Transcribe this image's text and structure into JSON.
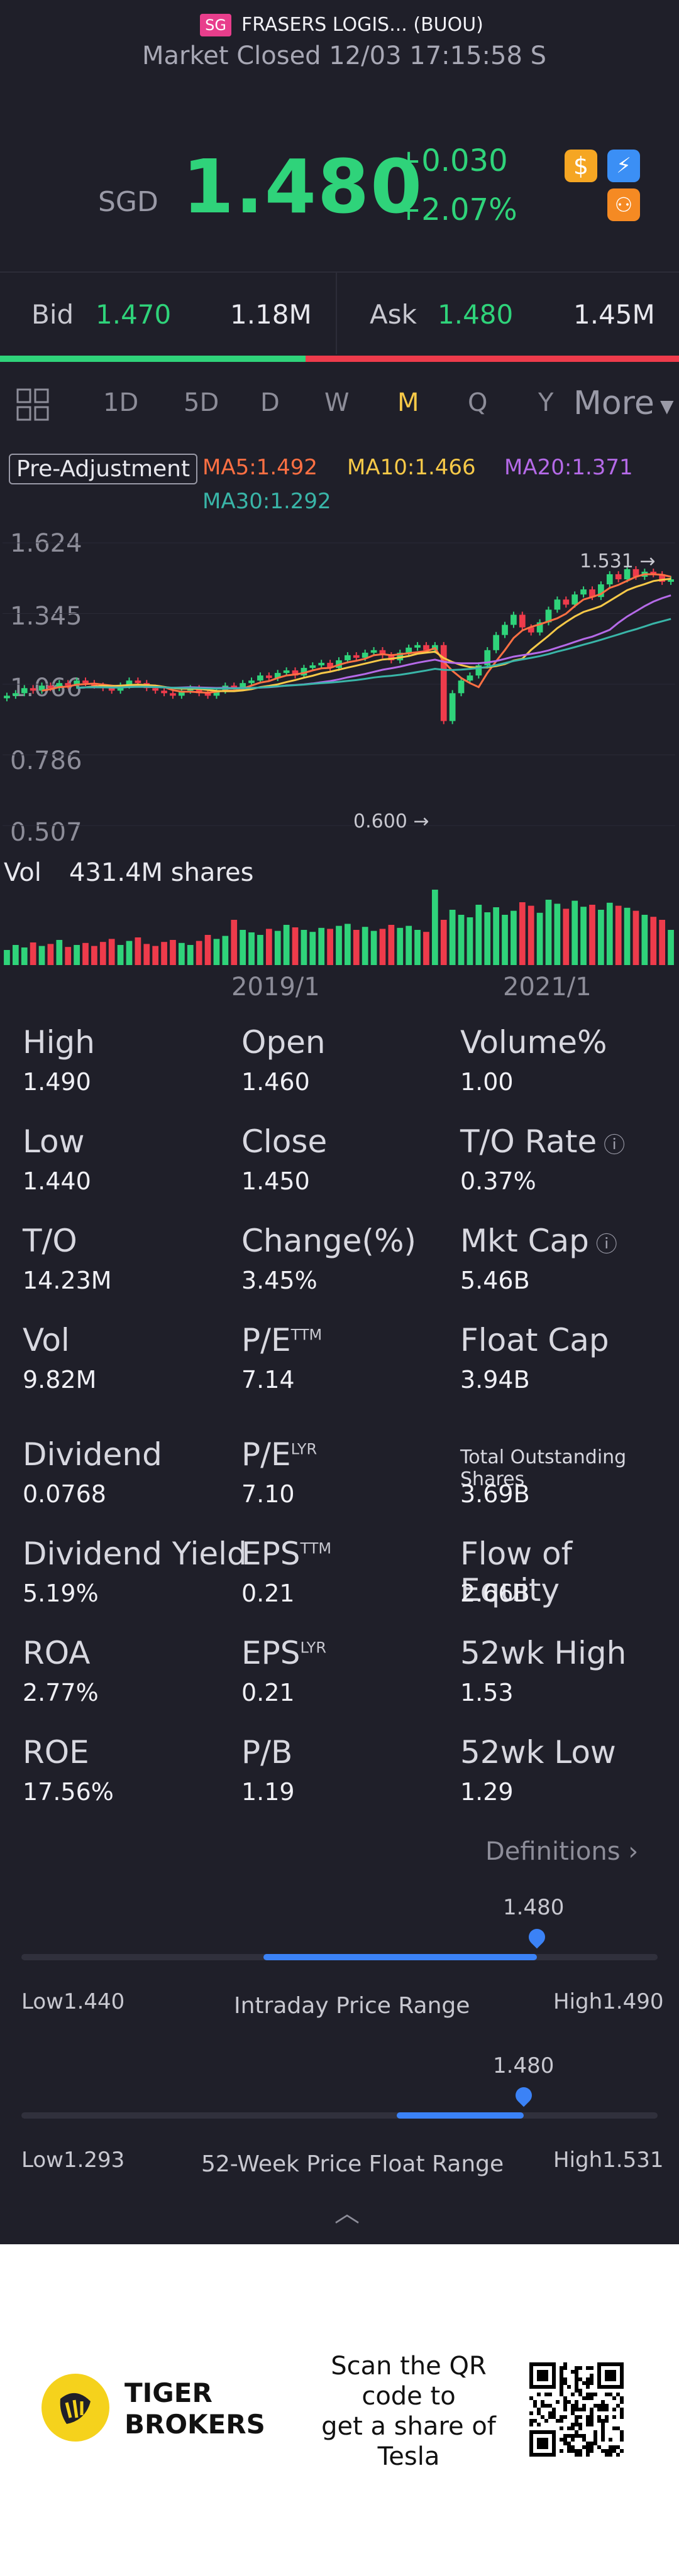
{
  "header": {
    "market_badge": "SG",
    "stock_name": "FRASERS LOGIS... (BUOU)",
    "market_status": "Market Closed 12/03 17:15:58 S"
  },
  "quote": {
    "currency": "SGD",
    "price": "1.480",
    "change": "+0.030",
    "change_pct": "+2.07%"
  },
  "orderbook": {
    "bid_label": "Bid",
    "bid_price": "1.470",
    "bid_volume": "1.18M",
    "ask_label": "Ask",
    "ask_price": "1.480",
    "ask_volume": "1.45M",
    "bid_share": 0.45
  },
  "tabs": {
    "items": [
      "1D",
      "5D",
      "D",
      "W",
      "M",
      "Q",
      "Y",
      "More"
    ],
    "active": "M"
  },
  "chart": {
    "adjustment": "Pre-Adjustment",
    "ma5": "MA5:1.492",
    "ma10": "MA10:1.466",
    "ma20": "MA20:1.371",
    "ma30": "MA30:1.292",
    "y_ticks": [
      "1.624",
      "1.345",
      "1.066",
      "0.786",
      "0.507"
    ],
    "high_marker": "1.531",
    "low_marker": "0.600",
    "vol_label": "Vol",
    "vol_value": "431.4M shares",
    "x_ticks": [
      "2019/1",
      "2021/1"
    ],
    "colors": {
      "up": "#2fd37a",
      "down": "#ee3b4b",
      "ma5": "#ff7043",
      "ma10": "#f7c948",
      "ma20": "#b56ae8",
      "ma30": "#39b5a8"
    }
  },
  "chart_data": {
    "type": "candlestick",
    "y_range": [
      0.507,
      1.624
    ],
    "close": [
      1.02,
      1.03,
      1.05,
      1.04,
      1.06,
      1.05,
      1.07,
      1.06,
      1.08,
      1.07,
      1.06,
      1.05,
      1.04,
      1.06,
      1.08,
      1.07,
      1.05,
      1.04,
      1.03,
      1.02,
      1.04,
      1.05,
      1.03,
      1.02,
      1.04,
      1.06,
      1.05,
      1.07,
      1.08,
      1.1,
      1.09,
      1.11,
      1.12,
      1.1,
      1.13,
      1.14,
      1.15,
      1.13,
      1.16,
      1.18,
      1.17,
      1.19,
      1.2,
      1.18,
      1.16,
      1.19,
      1.21,
      1.22,
      1.2,
      1.22,
      0.92,
      1.03,
      1.08,
      1.1,
      1.14,
      1.2,
      1.26,
      1.3,
      1.34,
      1.29,
      1.27,
      1.31,
      1.36,
      1.4,
      1.38,
      1.42,
      1.44,
      1.41,
      1.46,
      1.5,
      1.48,
      1.52,
      1.49,
      1.51,
      1.5,
      1.47,
      1.48
    ],
    "volume": [
      30,
      40,
      35,
      45,
      38,
      42,
      50,
      36,
      40,
      44,
      38,
      46,
      52,
      40,
      48,
      55,
      42,
      38,
      46,
      50,
      44,
      40,
      48,
      60,
      52,
      58,
      90,
      70,
      65,
      60,
      72,
      68,
      80,
      75,
      70,
      66,
      74,
      72,
      78,
      82,
      70,
      76,
      68,
      72,
      80,
      74,
      78,
      70,
      66,
      150,
      90,
      110,
      100,
      95,
      120,
      105,
      115,
      100,
      108,
      125,
      118,
      104,
      130,
      122,
      112,
      128,
      116,
      120,
      110,
      124,
      118,
      114,
      108,
      100,
      96,
      90,
      70
    ]
  },
  "stats": [
    {
      "label": "High",
      "value": "1.490"
    },
    {
      "label": "Open",
      "value": "1.460"
    },
    {
      "label": "Volume%",
      "value": "1.00"
    },
    {
      "label": "Low",
      "value": "1.440"
    },
    {
      "label": "Close",
      "value": "1.450"
    },
    {
      "label": "T/O Rate",
      "value": "0.37%"
    },
    {
      "label": "T/O",
      "value": "14.23M"
    },
    {
      "label": "Change(%)",
      "value": "3.45%"
    },
    {
      "label": "Mkt Cap",
      "value": "5.46B"
    },
    {
      "label": "Vol",
      "value": "9.82M"
    },
    {
      "label": "P/E",
      "sup": "TTM",
      "value": "7.14"
    },
    {
      "label": "Float Cap",
      "value": "3.94B"
    },
    {
      "label": "Dividend",
      "value": "0.0768"
    },
    {
      "label": "P/E",
      "sup": "LYR",
      "value": "7.10"
    },
    {
      "label": "Total Outstanding Shares",
      "value": "3.69B"
    },
    {
      "label": "Dividend Yield",
      "value": "5.19%"
    },
    {
      "label": "EPS",
      "sup": "TTM",
      "value": "0.21"
    },
    {
      "label": "Flow of Equity",
      "value": "2.66B"
    },
    {
      "label": "ROA",
      "value": "2.77%"
    },
    {
      "label": "EPS",
      "sup": "LYR",
      "value": "0.21"
    },
    {
      "label": "52wk High",
      "value": "1.53"
    },
    {
      "label": "ROE",
      "value": "17.56%"
    },
    {
      "label": "P/B",
      "value": "1.19"
    },
    {
      "label": "52wk Low",
      "value": "1.29"
    }
  ],
  "definitions_label": "Definitions",
  "intraday": {
    "current": "1.480",
    "low": "Low1.440",
    "high": "High1.490",
    "title": "Intraday Price Range",
    "fill_start": 0.38,
    "fill_end": 0.81
  },
  "week52": {
    "current": "1.480",
    "low": "Low1.293",
    "high": "High1.531",
    "title": "52-Week Price Float Range",
    "fill_start": 0.59,
    "fill_end": 0.79
  },
  "footer": {
    "brand_line1": "TIGER",
    "brand_line2": "BROKERS",
    "promo_line1": "Scan the QR",
    "promo_line2": "code to",
    "promo_line3": "get a share of",
    "promo_line4": "Tesla"
  }
}
